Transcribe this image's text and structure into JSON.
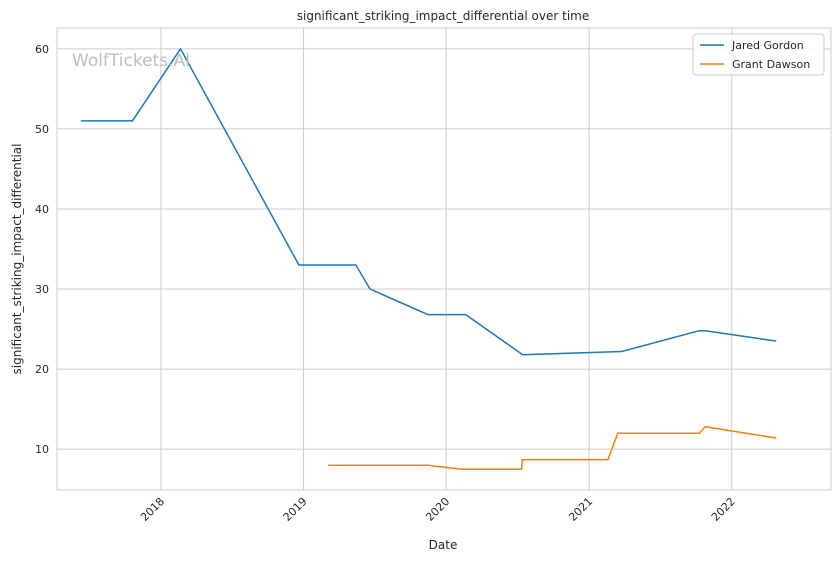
{
  "watermark": "WolfTickets.AI",
  "chart_data": {
    "type": "line",
    "title": "significant_striking_impact_differential over time",
    "xlabel": "Date",
    "ylabel": "significant_striking_impact_differential",
    "xlim": [
      "2017-04-10",
      "2022-09-12"
    ],
    "ylim": [
      4.9,
      62.6
    ],
    "x_ticks": [
      {
        "date": "2018-01-01",
        "label": "2018"
      },
      {
        "date": "2019-01-01",
        "label": "2019"
      },
      {
        "date": "2020-01-01",
        "label": "2020"
      },
      {
        "date": "2021-01-01",
        "label": "2021"
      },
      {
        "date": "2022-01-01",
        "label": "2022"
      }
    ],
    "y_ticks": [
      10,
      20,
      30,
      40,
      50,
      60
    ],
    "grid": true,
    "legend": "top-right",
    "series": [
      {
        "name": "Jared Gordon",
        "color": "#1f77b4",
        "points": [
          {
            "x": "2017-06-10",
            "y": 51
          },
          {
            "x": "2017-10-20",
            "y": 51
          },
          {
            "x": "2018-02-20",
            "y": 60
          },
          {
            "x": "2018-12-20",
            "y": 33
          },
          {
            "x": "2019-05-15",
            "y": 33
          },
          {
            "x": "2019-06-20",
            "y": 30
          },
          {
            "x": "2019-11-15",
            "y": 26.8
          },
          {
            "x": "2020-02-20",
            "y": 26.8
          },
          {
            "x": "2020-07-15",
            "y": 21.8
          },
          {
            "x": "2021-03-25",
            "y": 22.2
          },
          {
            "x": "2021-10-10",
            "y": 24.8
          },
          {
            "x": "2021-10-25",
            "y": 24.8
          },
          {
            "x": "2022-04-25",
            "y": 23.5
          }
        ]
      },
      {
        "name": "Grant Dawson",
        "color": "#ff7f0e",
        "points": [
          {
            "x": "2019-03-05",
            "y": 8
          },
          {
            "x": "2019-11-15",
            "y": 8
          },
          {
            "x": "2020-02-10",
            "y": 7.5
          },
          {
            "x": "2020-07-12",
            "y": 7.5
          },
          {
            "x": "2020-07-14",
            "y": 8.7
          },
          {
            "x": "2021-02-18",
            "y": 8.7
          },
          {
            "x": "2021-03-15",
            "y": 12
          },
          {
            "x": "2021-10-10",
            "y": 12
          },
          {
            "x": "2021-10-25",
            "y": 12.8
          },
          {
            "x": "2022-04-25",
            "y": 11.4
          }
        ]
      }
    ]
  }
}
